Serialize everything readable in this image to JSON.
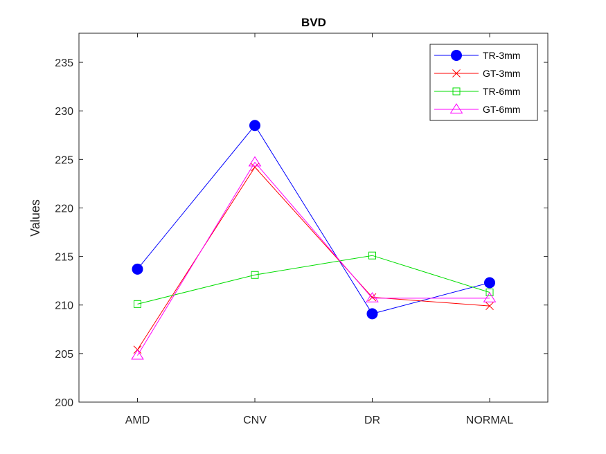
{
  "chart_data": {
    "type": "line",
    "title": "BVD",
    "xlabel": "",
    "ylabel": "Values",
    "categories": [
      "AMD",
      "CNV",
      "DR",
      "NORMAL"
    ],
    "ylim": [
      200,
      238
    ],
    "yticks": [
      200,
      205,
      210,
      215,
      220,
      225,
      230,
      235
    ],
    "grid": false,
    "legend_position": "top-right",
    "series": [
      {
        "name": "TR-3mm",
        "values": [
          213.7,
          228.5,
          209.1,
          212.3
        ],
        "color": "#0000ff",
        "marker": "filled-circle"
      },
      {
        "name": "GT-3mm",
        "values": [
          205.4,
          224.2,
          210.8,
          209.9
        ],
        "color": "#ff0000",
        "marker": "x"
      },
      {
        "name": "TR-6mm",
        "values": [
          210.1,
          213.1,
          215.1,
          211.3
        ],
        "color": "#00dd00",
        "marker": "square"
      },
      {
        "name": "GT-6mm",
        "values": [
          204.8,
          224.7,
          210.7,
          210.7
        ],
        "color": "#ff00ff",
        "marker": "triangle"
      }
    ]
  }
}
